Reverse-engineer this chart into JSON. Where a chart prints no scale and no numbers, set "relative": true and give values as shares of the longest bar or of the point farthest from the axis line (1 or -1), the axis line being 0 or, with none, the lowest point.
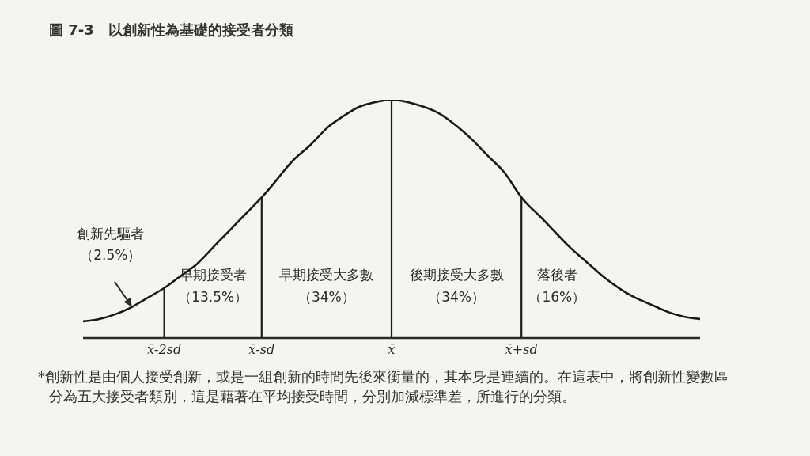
{
  "chart_data": {
    "type": "line",
    "title": "圖 7-3　以創新性為基礎的接受者分類",
    "categories": [
      null,
      null,
      null,
      null,
      null,
      "x̄-2sd",
      null,
      null,
      null,
      null,
      null,
      "x̄-sd",
      null,
      null,
      null,
      null,
      null,
      null,
      null,
      "x̄",
      null,
      null,
      null,
      null,
      null,
      null,
      null,
      "x̄+sd",
      null,
      null,
      null,
      null,
      null,
      null,
      null,
      null,
      null,
      null,
      null
    ],
    "values": [
      0.07,
      0.08,
      0.1,
      0.13,
      0.17,
      0.21,
      0.26,
      0.31,
      0.38,
      0.45,
      0.52,
      0.59,
      0.67,
      0.75,
      0.81,
      0.88,
      0.93,
      0.97,
      0.99,
      1,
      0.99,
      0.97,
      0.94,
      0.89,
      0.83,
      0.76,
      0.69,
      0.59,
      0.52,
      0.45,
      0.38,
      0.32,
      0.26,
      0.21,
      0.17,
      0.14,
      0.11,
      0.09,
      0.08
    ],
    "color": "#1a1a1a",
    "relative": true,
    "marker": "none",
    "ref_lines": [
      {
        "axis": "x",
        "value": "x̄-2sd",
        "color": "#1a1a1a"
      },
      {
        "axis": "x",
        "value": "x̄-sd",
        "color": "#1a1a1a"
      },
      {
        "axis": "x",
        "value": "x̄",
        "color": "#1a1a1a"
      },
      {
        "axis": "x",
        "value": "x̄+sd",
        "color": "#1a1a1a"
      }
    ],
    "annotations": [
      "創新先驅者（2.5%）",
      "早期接受者（13.5%）",
      "早期接受大多數（34%）",
      "後期接受大多數（34%）",
      "落後者（16%）",
      "*創新性是由個人接受創新，或是一組創新的時間先後來衡量的，其本身是連續的。在這表中，將創新性變數區分為五大接受者類別，這是藉著在平均接受時間，分別加減標準差，所進行的分類。"
    ]
  }
}
